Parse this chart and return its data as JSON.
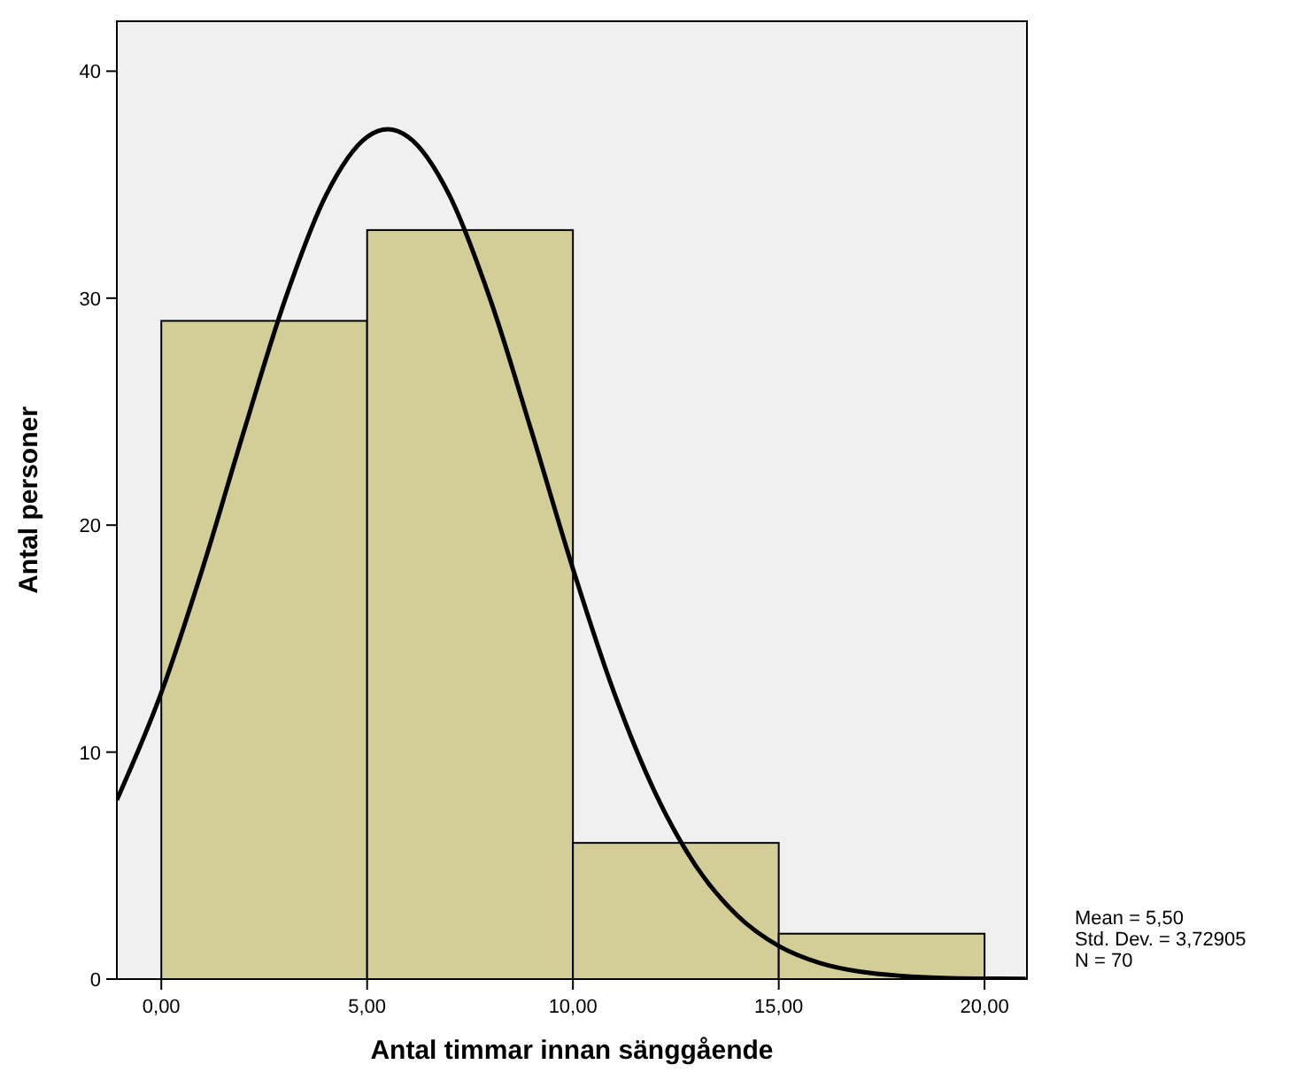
{
  "chart_data": {
    "type": "histogram",
    "xlabel": "Antal timmar innan sänggående",
    "ylabel": "Antal personer",
    "bins": [
      0,
      5,
      10,
      15,
      20
    ],
    "values": [
      29,
      33,
      6,
      2
    ],
    "color": "#d3ce97",
    "series": [
      {
        "type": "line",
        "color": "#000000",
        "x": [
          -1.08,
          0,
          1,
          2,
          3,
          4,
          5,
          5.5,
          6,
          7,
          8,
          9,
          10,
          11,
          12,
          13,
          14,
          15,
          16,
          17,
          18,
          19,
          20,
          21
        ],
        "values": [
          7.89,
          12.62,
          18.08,
          24.1,
          29.9,
          34.53,
          37.1,
          37.44,
          37.1,
          34.53,
          29.9,
          24.1,
          18.08,
          12.62,
          8.2,
          4.95,
          2.79,
          1.46,
          0.71,
          0.32,
          0.14,
          0.05,
          0.02,
          0.01
        ]
      }
    ],
    "xlim": [
      -1.08,
      21.03
    ],
    "ylim": [
      0,
      42.2
    ],
    "xticks": [
      {
        "value": 0,
        "label": "0,00"
      },
      {
        "value": 5,
        "label": "5,00"
      },
      {
        "value": 10,
        "label": "10,00"
      },
      {
        "value": 15,
        "label": "15,00"
      },
      {
        "value": 20,
        "label": "20,00"
      }
    ],
    "yticks": [
      0,
      10,
      20,
      30,
      40
    ],
    "grid": false,
    "line_style": "solid",
    "annotations": [
      "Mean = 5,50",
      "Std. Dev. = 3,72905",
      "N = 70"
    ]
  }
}
